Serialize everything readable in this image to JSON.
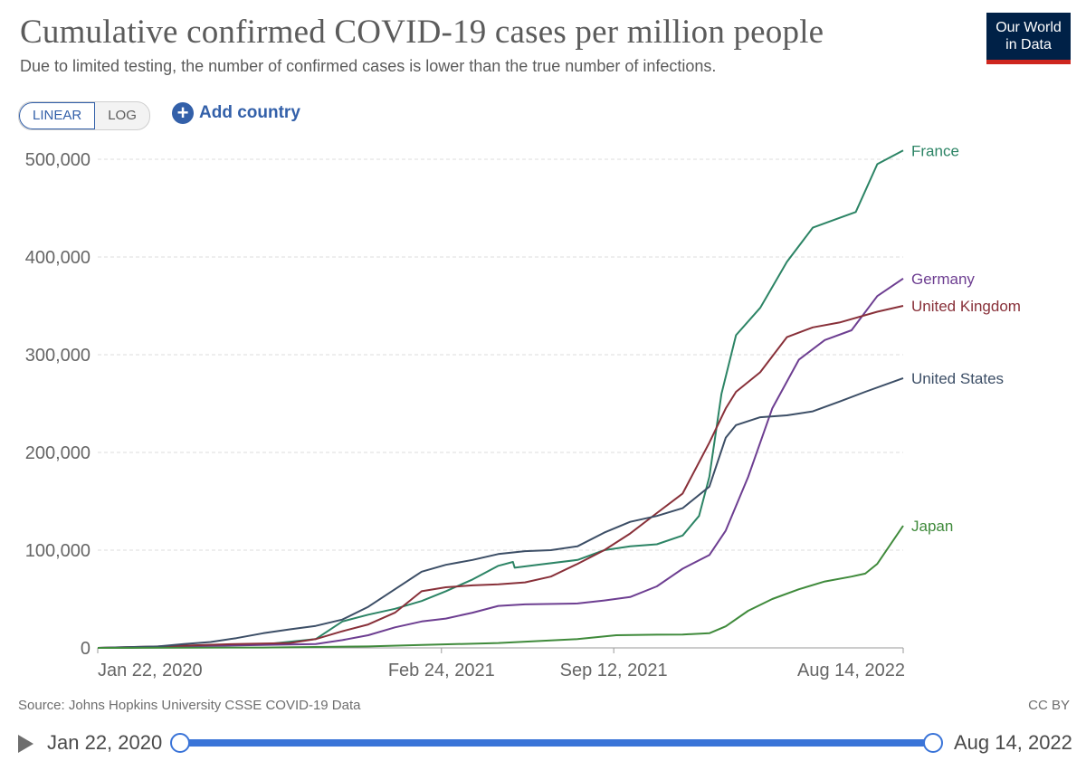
{
  "header": {
    "title": "Cumulative confirmed COVID-19 cases per million people",
    "subtitle": "Due to limited testing, the number of confirmed cases is lower than the true number of infections.",
    "logo_line1": "Our World",
    "logo_line2": "in Data"
  },
  "controls": {
    "linear_label": "LINEAR",
    "log_label": "LOG",
    "add_country_label": "Add country",
    "add_country_icon": "plus-circle-icon",
    "active_scale": "linear"
  },
  "footer": {
    "source": "Source: Johns Hopkins University CSSE COVID-19 Data",
    "license": "CC BY"
  },
  "timeline": {
    "start_label": "Jan 22, 2020",
    "end_label": "Aug 14, 2022",
    "play_icon": "play-icon",
    "start_value": 0,
    "end_value": 1
  },
  "chart_data": {
    "type": "line",
    "title": "Cumulative confirmed COVID-19 cases per million people",
    "xlabel": "",
    "ylabel": "",
    "x_range": [
      "2020-01-22",
      "2022-08-14"
    ],
    "ylim": [
      0,
      500000
    ],
    "y_ticks": [
      0,
      100000,
      200000,
      300000,
      400000,
      500000
    ],
    "y_tick_labels": [
      "0",
      "100,000",
      "200,000",
      "300,000",
      "400,000",
      "500,000"
    ],
    "x_ticks": [
      "2020-01-22",
      "2021-02-24",
      "2021-09-12",
      "2022-08-14"
    ],
    "x_tick_labels": [
      "Jan 22, 2020",
      "Feb 24, 2021",
      "Sep 12, 2021",
      "Aug 14, 2022"
    ],
    "grid": "horizontal dashed",
    "legend": "line-end labels on right",
    "series": [
      {
        "name": "France",
        "color": "#2c8465",
        "points": [
          [
            "2020-01-22",
            0
          ],
          [
            "2020-03-01",
            0
          ],
          [
            "2020-05-01",
            2000
          ],
          [
            "2020-08-01",
            3500
          ],
          [
            "2020-10-01",
            9000
          ],
          [
            "2020-11-01",
            27000
          ],
          [
            "2020-12-01",
            34000
          ],
          [
            "2021-01-01",
            40000
          ],
          [
            "2021-02-01",
            48000
          ],
          [
            "2021-03-01",
            58000
          ],
          [
            "2021-04-01",
            70000
          ],
          [
            "2021-05-01",
            84000
          ],
          [
            "2021-05-18",
            88000
          ],
          [
            "2021-05-20",
            82000
          ],
          [
            "2021-06-15",
            85000
          ],
          [
            "2021-08-01",
            90000
          ],
          [
            "2021-09-01",
            100000
          ],
          [
            "2021-10-01",
            104000
          ],
          [
            "2021-11-01",
            106000
          ],
          [
            "2021-12-01",
            115000
          ],
          [
            "2021-12-20",
            135000
          ],
          [
            "2022-01-01",
            175000
          ],
          [
            "2022-01-15",
            260000
          ],
          [
            "2022-02-01",
            320000
          ],
          [
            "2022-03-01",
            348000
          ],
          [
            "2022-04-01",
            395000
          ],
          [
            "2022-05-01",
            430000
          ],
          [
            "2022-06-01",
            440000
          ],
          [
            "2022-06-20",
            446000
          ],
          [
            "2022-07-15",
            495000
          ],
          [
            "2022-08-14",
            509000
          ]
        ]
      },
      {
        "name": "Germany",
        "color": "#6d3e91",
        "points": [
          [
            "2020-01-22",
            0
          ],
          [
            "2020-04-01",
            1000
          ],
          [
            "2020-07-01",
            2500
          ],
          [
            "2020-10-01",
            4000
          ],
          [
            "2020-11-01",
            8000
          ],
          [
            "2020-12-01",
            13000
          ],
          [
            "2021-01-01",
            21000
          ],
          [
            "2021-02-01",
            27000
          ],
          [
            "2021-03-01",
            30000
          ],
          [
            "2021-04-01",
            36000
          ],
          [
            "2021-05-01",
            43000
          ],
          [
            "2021-06-01",
            44500
          ],
          [
            "2021-08-01",
            45500
          ],
          [
            "2021-09-01",
            48500
          ],
          [
            "2021-10-01",
            52000
          ],
          [
            "2021-11-01",
            63000
          ],
          [
            "2021-12-01",
            81000
          ],
          [
            "2022-01-01",
            95000
          ],
          [
            "2022-01-20",
            120000
          ],
          [
            "2022-02-15",
            175000
          ],
          [
            "2022-03-15",
            245000
          ],
          [
            "2022-04-15",
            295000
          ],
          [
            "2022-05-15",
            315000
          ],
          [
            "2022-06-15",
            325000
          ],
          [
            "2022-07-15",
            360000
          ],
          [
            "2022-08-14",
            378000
          ]
        ]
      },
      {
        "name": "United Kingdom",
        "color": "#883039",
        "points": [
          [
            "2020-01-22",
            0
          ],
          [
            "2020-04-01",
            1500
          ],
          [
            "2020-07-01",
            4000
          ],
          [
            "2020-09-01",
            5000
          ],
          [
            "2020-10-01",
            9000
          ],
          [
            "2020-11-01",
            17000
          ],
          [
            "2020-12-01",
            24000
          ],
          [
            "2021-01-01",
            36000
          ],
          [
            "2021-02-01",
            58000
          ],
          [
            "2021-03-01",
            62000
          ],
          [
            "2021-04-01",
            64000
          ],
          [
            "2021-05-01",
            65000
          ],
          [
            "2021-06-01",
            67000
          ],
          [
            "2021-07-01",
            73000
          ],
          [
            "2021-08-01",
            86000
          ],
          [
            "2021-09-01",
            100000
          ],
          [
            "2021-10-01",
            117000
          ],
          [
            "2021-11-01",
            138000
          ],
          [
            "2021-12-01",
            158000
          ],
          [
            "2022-01-01",
            210000
          ],
          [
            "2022-01-20",
            245000
          ],
          [
            "2022-02-01",
            262000
          ],
          [
            "2022-03-01",
            282000
          ],
          [
            "2022-04-01",
            318000
          ],
          [
            "2022-05-01",
            328000
          ],
          [
            "2022-06-01",
            333000
          ],
          [
            "2022-07-15",
            344000
          ],
          [
            "2022-08-14",
            350000
          ]
        ]
      },
      {
        "name": "United States",
        "color": "#3c4e66",
        "points": [
          [
            "2020-01-22",
            0
          ],
          [
            "2020-04-01",
            1500
          ],
          [
            "2020-05-01",
            4000
          ],
          [
            "2020-06-01",
            6000
          ],
          [
            "2020-07-01",
            10000
          ],
          [
            "2020-08-01",
            15000
          ],
          [
            "2020-09-01",
            19000
          ],
          [
            "2020-10-01",
            22500
          ],
          [
            "2020-11-01",
            29000
          ],
          [
            "2020-12-01",
            42000
          ],
          [
            "2021-01-01",
            60000
          ],
          [
            "2021-02-01",
            78000
          ],
          [
            "2021-03-01",
            85000
          ],
          [
            "2021-04-01",
            90000
          ],
          [
            "2021-05-01",
            96000
          ],
          [
            "2021-06-01",
            99000
          ],
          [
            "2021-07-01",
            100000
          ],
          [
            "2021-08-01",
            104000
          ],
          [
            "2021-09-01",
            118000
          ],
          [
            "2021-10-01",
            129000
          ],
          [
            "2021-11-01",
            135000
          ],
          [
            "2021-12-01",
            143000
          ],
          [
            "2022-01-01",
            165000
          ],
          [
            "2022-01-20",
            215000
          ],
          [
            "2022-02-01",
            228000
          ],
          [
            "2022-03-01",
            236000
          ],
          [
            "2022-04-01",
            238000
          ],
          [
            "2022-05-01",
            242000
          ],
          [
            "2022-06-01",
            252000
          ],
          [
            "2022-07-01",
            262000
          ],
          [
            "2022-08-14",
            276000
          ]
        ]
      },
      {
        "name": "Japan",
        "color": "#3f8a3b",
        "points": [
          [
            "2020-01-22",
            0
          ],
          [
            "2020-08-01",
            400
          ],
          [
            "2020-12-01",
            1500
          ],
          [
            "2021-02-01",
            3000
          ],
          [
            "2021-05-01",
            5000
          ],
          [
            "2021-08-01",
            9000
          ],
          [
            "2021-09-15",
            13000
          ],
          [
            "2021-11-01",
            13500
          ],
          [
            "2021-12-01",
            13700
          ],
          [
            "2022-01-01",
            15000
          ],
          [
            "2022-01-20",
            22000
          ],
          [
            "2022-02-15",
            38000
          ],
          [
            "2022-03-15",
            50000
          ],
          [
            "2022-04-15",
            60000
          ],
          [
            "2022-05-15",
            68000
          ],
          [
            "2022-06-15",
            73000
          ],
          [
            "2022-07-01",
            76000
          ],
          [
            "2022-07-15",
            86000
          ],
          [
            "2022-08-14",
            125000
          ]
        ]
      }
    ]
  }
}
